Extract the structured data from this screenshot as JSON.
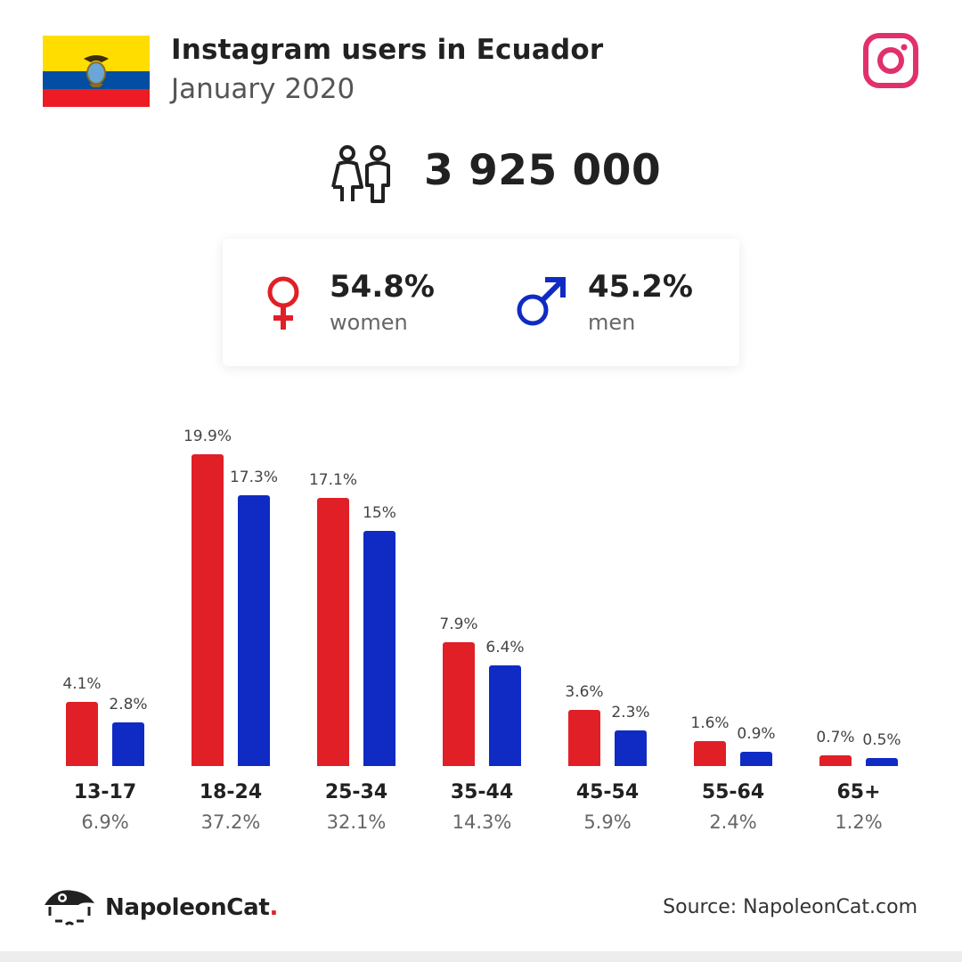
{
  "header": {
    "title": "Instagram users in Ecuador",
    "subtitle": "January 2020"
  },
  "total_users": "3 925 000",
  "gender": {
    "women": {
      "value": "54.8%",
      "label": "women",
      "color": "#e01f26"
    },
    "men": {
      "value": "45.2%",
      "label": "men",
      "color": "#0f2bc4"
    }
  },
  "colors": {
    "women": "#e01f26",
    "men": "#0f2bc4",
    "instagram": "#e1306c",
    "flag_yellow": "#ffdd00",
    "flag_blue": "#034ea2",
    "flag_red": "#ed1c24"
  },
  "icons": [
    "ecuador-flag-icon",
    "instagram-icon",
    "people-icon",
    "female-icon",
    "male-icon",
    "napoleoncat-logo-icon"
  ],
  "chart_data": {
    "type": "bar",
    "categories": [
      "13-17",
      "18-24",
      "25-34",
      "35-44",
      "45-54",
      "55-64",
      "65+"
    ],
    "category_totals": [
      "6.9%",
      "37.2%",
      "32.1%",
      "14.3%",
      "5.9%",
      "2.4%",
      "1.2%"
    ],
    "series": [
      {
        "key": "women",
        "values": [
          4.1,
          19.9,
          17.1,
          7.9,
          3.6,
          1.6,
          0.7
        ],
        "labels": [
          "4.1%",
          "19.9%",
          "17.1%",
          "7.9%",
          "3.6%",
          "1.6%",
          "0.7%"
        ]
      },
      {
        "key": "men",
        "values": [
          2.8,
          17.3,
          15.0,
          6.4,
          2.3,
          0.9,
          0.5
        ],
        "labels": [
          "2.8%",
          "17.3%",
          "15%",
          "6.4%",
          "2.3%",
          "0.9%",
          "0.5%"
        ]
      }
    ],
    "ylim": [
      0,
      20
    ],
    "grid": false
  },
  "footer": {
    "brand": "NapoleonCat",
    "brand_dot": ".",
    "source": "Source: NapoleonCat.com"
  }
}
